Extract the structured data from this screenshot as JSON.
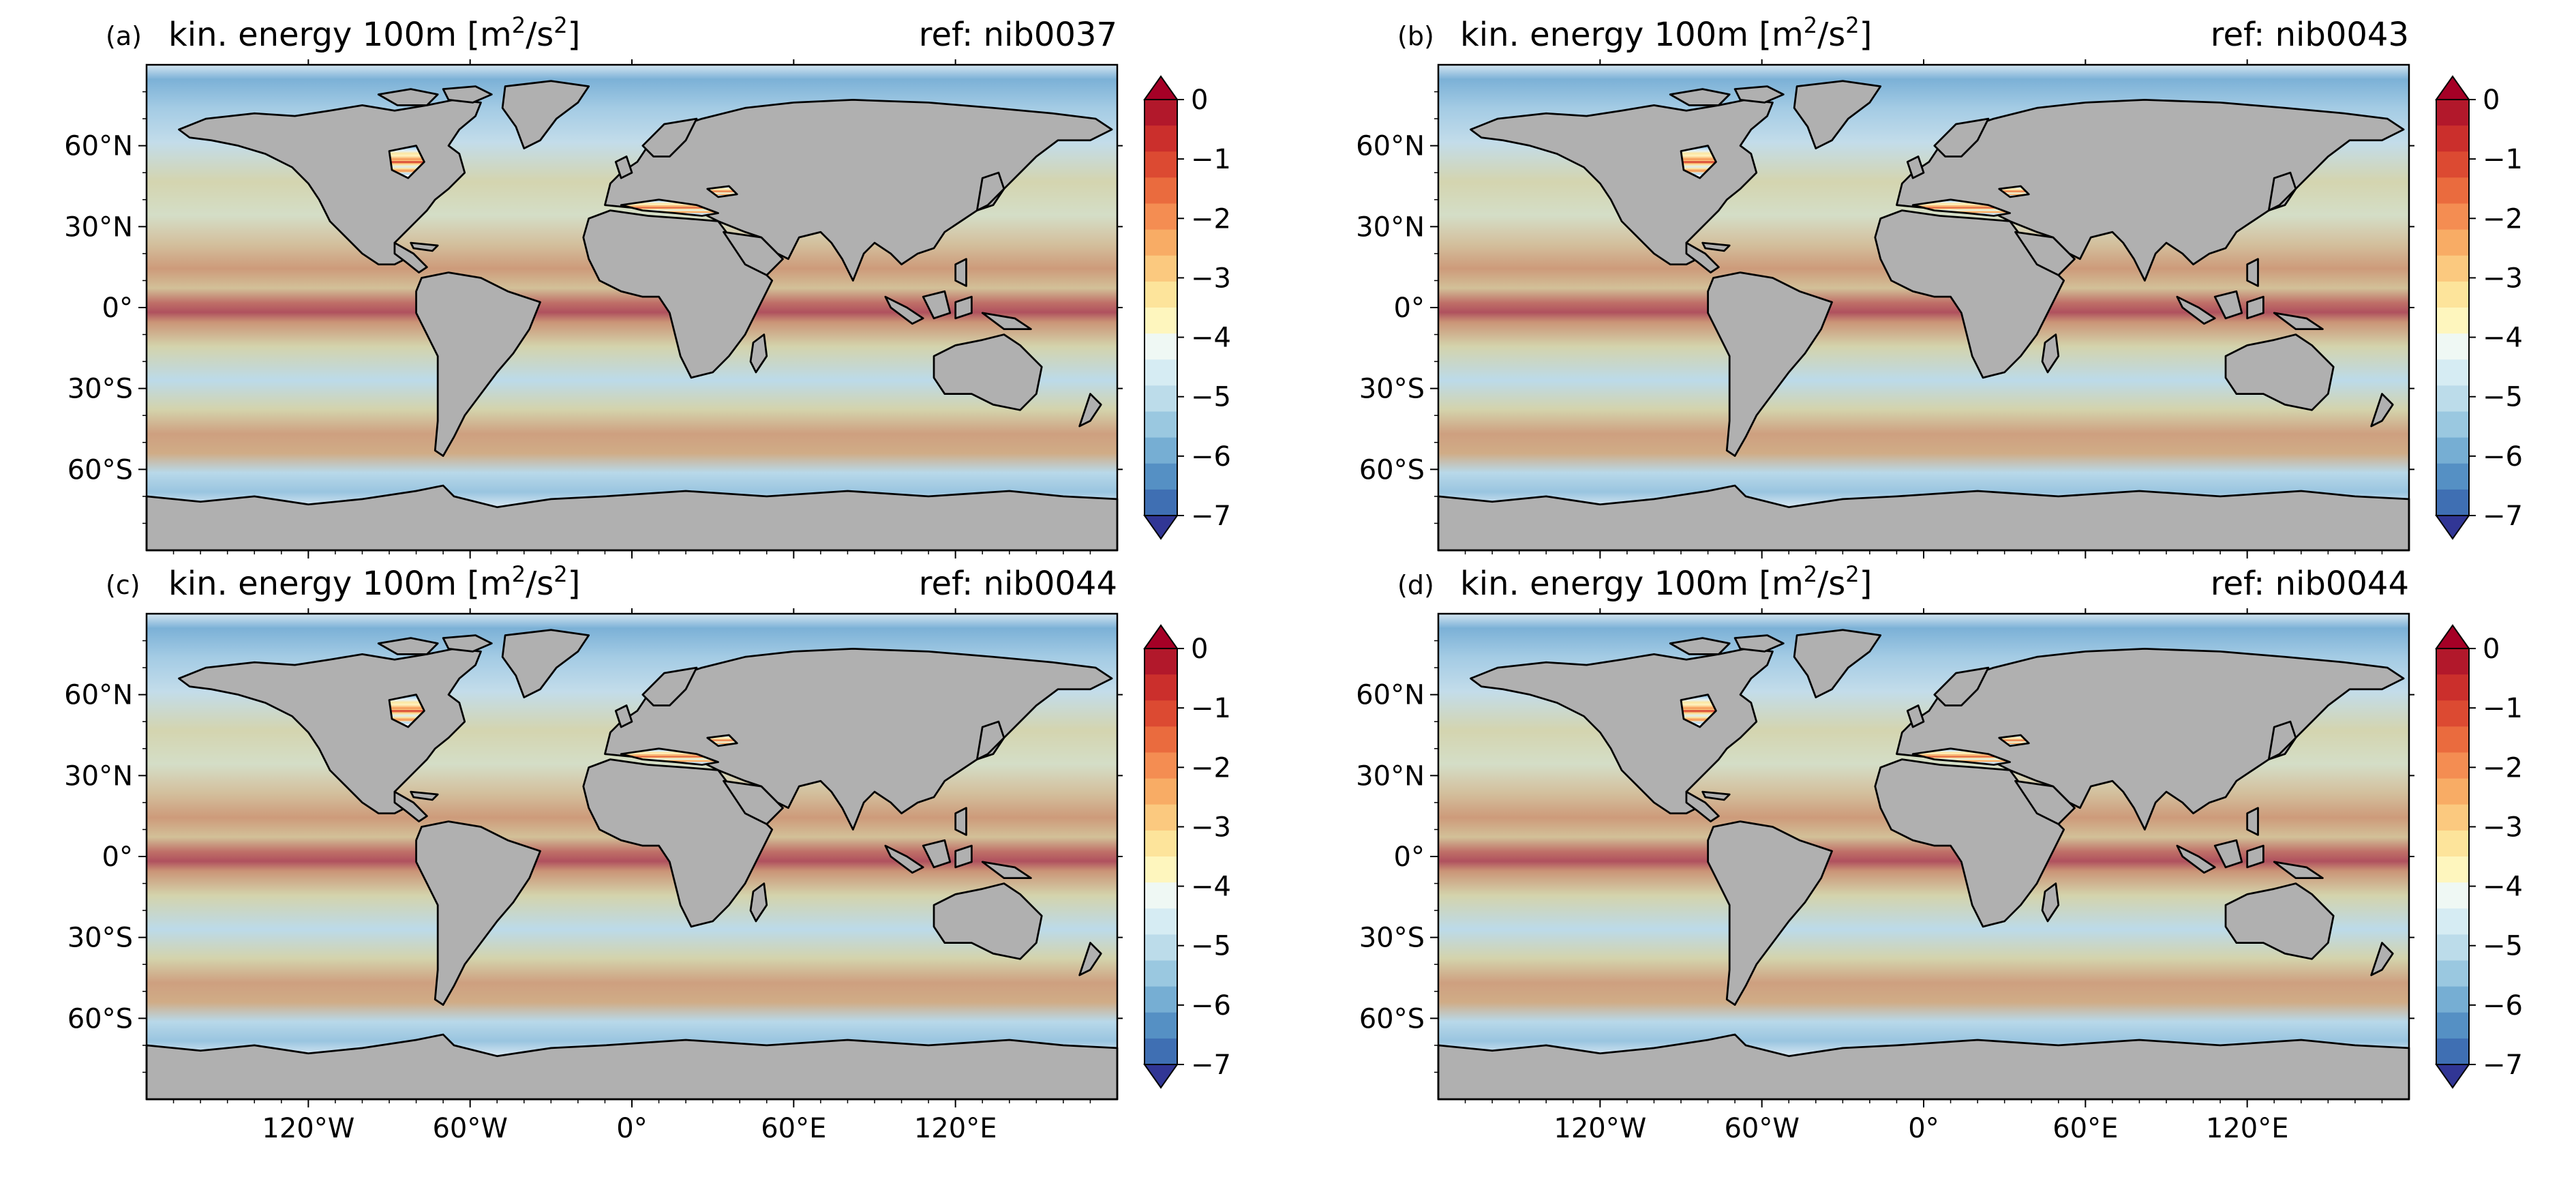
{
  "panels": [
    {
      "id": "a",
      "label": "(a)",
      "title_prefix": "kin. energy 100m [m",
      "title_sup1": "2",
      "title_mid": "/s",
      "title_sup2": "2",
      "title_suffix": "]",
      "ref": "ref: nib0037",
      "show_xticks": false
    },
    {
      "id": "b",
      "label": "(b)",
      "title_prefix": "kin. energy 100m [m",
      "title_sup1": "2",
      "title_mid": "/s",
      "title_sup2": "2",
      "title_suffix": "]",
      "ref": "ref: nib0043",
      "show_xticks": false
    },
    {
      "id": "c",
      "label": "(c)",
      "title_prefix": "kin. energy 100m [m",
      "title_sup1": "2",
      "title_mid": "/s",
      "title_sup2": "2",
      "title_suffix": "]",
      "ref": "ref: nib0044",
      "show_xticks": true
    },
    {
      "id": "d",
      "label": "(d)",
      "title_prefix": "kin. energy 100m [m",
      "title_sup1": "2",
      "title_mid": "/s",
      "title_sup2": "2",
      "title_suffix": "]",
      "ref": "ref: nib0044",
      "show_xticks": true
    }
  ],
  "lat_ticks": [
    {
      "value": 60,
      "label": "60°N"
    },
    {
      "value": 30,
      "label": "30°N"
    },
    {
      "value": 0,
      "label": "0°"
    },
    {
      "value": -30,
      "label": "30°S"
    },
    {
      "value": -60,
      "label": "60°S"
    }
  ],
  "lon_ticks": [
    {
      "value": -120,
      "label": "120°W"
    },
    {
      "value": -60,
      "label": "60°W"
    },
    {
      "value": 0,
      "label": "0°"
    },
    {
      "value": 60,
      "label": "60°E"
    },
    {
      "value": 120,
      "label": "120°E"
    }
  ],
  "map_extent": {
    "lon": [
      -180,
      180
    ],
    "lat": [
      -90,
      90
    ]
  },
  "colorbar": {
    "range": [
      -7,
      0
    ],
    "ticks": [
      {
        "value": 0,
        "label": "0"
      },
      {
        "value": -1,
        "label": "−1"
      },
      {
        "value": -2,
        "label": "−2"
      },
      {
        "value": -3,
        "label": "−3"
      },
      {
        "value": -4,
        "label": "−4"
      },
      {
        "value": -5,
        "label": "−5"
      },
      {
        "value": -6,
        "label": "−6"
      },
      {
        "value": -7,
        "label": "−7"
      }
    ],
    "colors_top_to_bottom": [
      "#b2182b",
      "#cb2f2c",
      "#dc4a32",
      "#ea6b3e",
      "#f48d52",
      "#f8ac65",
      "#fbc97f",
      "#fde49b",
      "#fef6be",
      "#eff8f4",
      "#d6ecf3",
      "#bcdcea",
      "#9ac8e0",
      "#76aed3",
      "#5590c4",
      "#3f6fb3"
    ],
    "over_color": "#a50026",
    "under_color": "#313695"
  },
  "colors": {
    "land": "#b0b0b0",
    "coast": "#000000",
    "ice_free_polar": "#ffffff"
  }
}
